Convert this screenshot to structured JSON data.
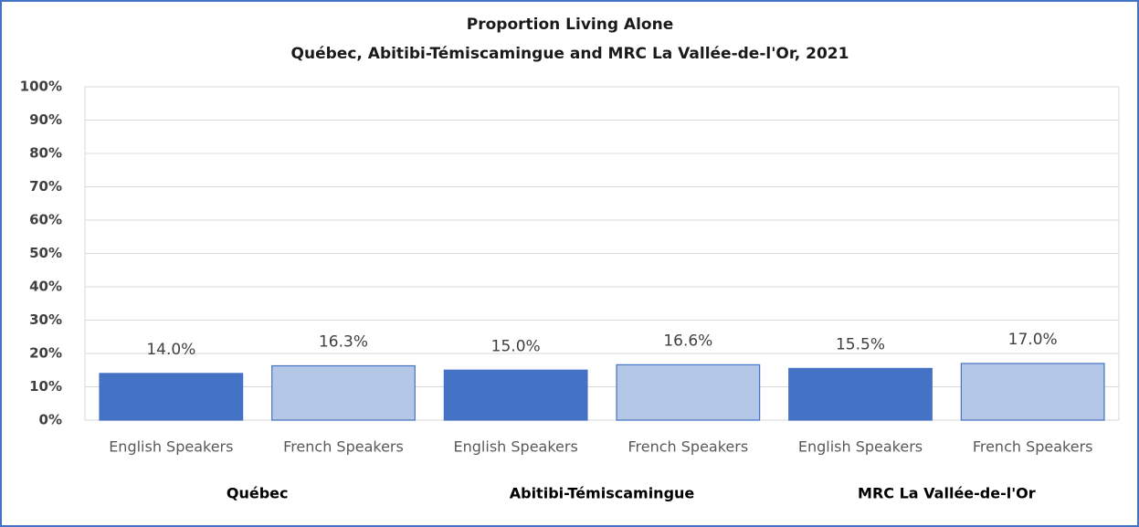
{
  "chart_data": {
    "type": "bar",
    "title": "Proportion Living Alone",
    "subtitle": "Québec, Abitibi-Témiscamingue  and MRC La Vallée-de-l'Or, 2021",
    "categories": [
      "English Speakers",
      "French Speakers",
      "English Speakers",
      "French Speakers",
      "English Speakers",
      "French Speakers"
    ],
    "groups": [
      "Québec",
      "Abitibi-Témiscamingue",
      "MRC La Vallée-de-l'Or"
    ],
    "values": [
      14.0,
      16.3,
      15.0,
      16.6,
      15.5,
      17.0
    ],
    "value_labels": [
      "14.0%",
      "16.3%",
      "15.0%",
      "16.6%",
      "15.5%",
      "17.0%"
    ],
    "colors": [
      "#4472c4",
      "#b4c7e7",
      "#4472c4",
      "#b4c7e7",
      "#4472c4",
      "#b4c7e7"
    ],
    "ylim": [
      0,
      100
    ],
    "yticks": [
      {
        "value": 0,
        "label": "0%"
      },
      {
        "value": 10,
        "label": "10%"
      },
      {
        "value": 20,
        "label": "20%"
      },
      {
        "value": 30,
        "label": "30%"
      },
      {
        "value": 40,
        "label": "40%"
      },
      {
        "value": 50,
        "label": "50%"
      },
      {
        "value": 60,
        "label": "60%"
      },
      {
        "value": 70,
        "label": "70%"
      },
      {
        "value": 80,
        "label": "80%"
      },
      {
        "value": 90,
        "label": "90%"
      },
      {
        "value": 100,
        "label": "100%"
      }
    ],
    "grid": true
  }
}
